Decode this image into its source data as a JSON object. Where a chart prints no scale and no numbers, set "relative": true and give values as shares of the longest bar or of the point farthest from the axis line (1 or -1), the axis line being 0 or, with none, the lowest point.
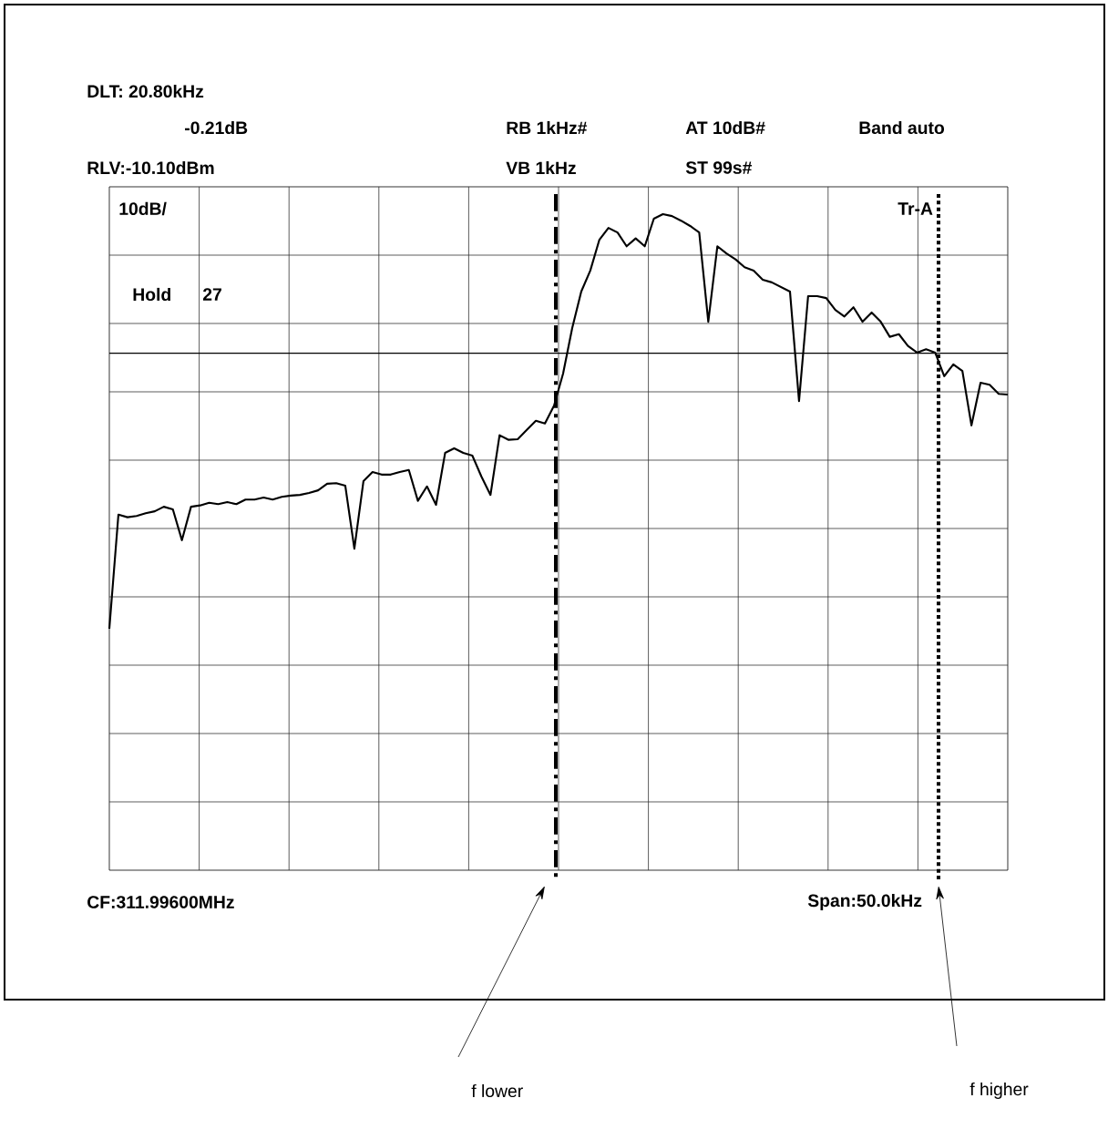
{
  "chart_data": {
    "type": "line",
    "relative": true,
    "grid": true,
    "categories": [
      null,
      null,
      null,
      null,
      null,
      null,
      null,
      null,
      null,
      null,
      null,
      null,
      null,
      null,
      null,
      null,
      null,
      null,
      null,
      null,
      null,
      null,
      null,
      null,
      null,
      null,
      null,
      null,
      null,
      null,
      null,
      null,
      null,
      null,
      null,
      null,
      null,
      null,
      null,
      null,
      null,
      null,
      null,
      null,
      null,
      null,
      null,
      null,
      null,
      null,
      null,
      null,
      null,
      null,
      null,
      null,
      null,
      null,
      null,
      null,
      null,
      null,
      null,
      null,
      null,
      null,
      null,
      null,
      null,
      null,
      null,
      null,
      null,
      null,
      null,
      null,
      null,
      null,
      null,
      null,
      null,
      null,
      null,
      null,
      null,
      null,
      null,
      null,
      null,
      null,
      null,
      null,
      null,
      null,
      null,
      null,
      null,
      null,
      null,
      null
    ],
    "series": [
      {
        "color": "#000000",
        "values": [
          0.368,
          0.542,
          0.538,
          0.54,
          0.544,
          0.547,
          0.554,
          0.55,
          0.503,
          0.554,
          0.556,
          0.56,
          0.558,
          0.561,
          0.558,
          0.565,
          0.565,
          0.568,
          0.565,
          0.569,
          0.571,
          0.572,
          0.575,
          0.579,
          0.589,
          0.59,
          0.586,
          0.49,
          0.593,
          0.607,
          0.603,
          0.603,
          0.607,
          0.61,
          0.563,
          0.585,
          0.557,
          0.636,
          0.643,
          0.636,
          0.632,
          0.6,
          0.572,
          0.663,
          0.656,
          0.657,
          0.671,
          0.685,
          0.681,
          0.708,
          0.757,
          0.826,
          0.882,
          0.914,
          0.961,
          0.979,
          0.972,
          0.951,
          0.963,
          0.951,
          0.993,
          1.0,
          0.997,
          0.99,
          0.982,
          0.972,
          0.836,
          0.951,
          0.94,
          0.931,
          0.919,
          0.914,
          0.9,
          0.896,
          0.889,
          0.882,
          0.715,
          0.875,
          0.875,
          0.872,
          0.854,
          0.844,
          0.858,
          0.836,
          0.85,
          0.836,
          0.813,
          0.817,
          0.799,
          0.789,
          0.794,
          0.789,
          0.753,
          0.771,
          0.761,
          0.678,
          0.743,
          0.74,
          0.726,
          0.725
        ]
      }
    ],
    "ref_lines": [
      {
        "axis": "y",
        "value": 0.788,
        "color": "#000000",
        "line_style": "solid"
      }
    ],
    "annotations": [
      "DLT: 20.80kHz",
      "-0.21dB",
      "RLV:-10.10dBm",
      "RB 1kHz#",
      "VB 1kHz",
      "AT 10dB#",
      "ST 99s#",
      "Band auto",
      "10dB/",
      "Tr-A",
      "Hold",
      "27",
      "CF:311.99600MHz",
      "Span:50.0kHz",
      "f lower",
      "f higher"
    ]
  }
}
